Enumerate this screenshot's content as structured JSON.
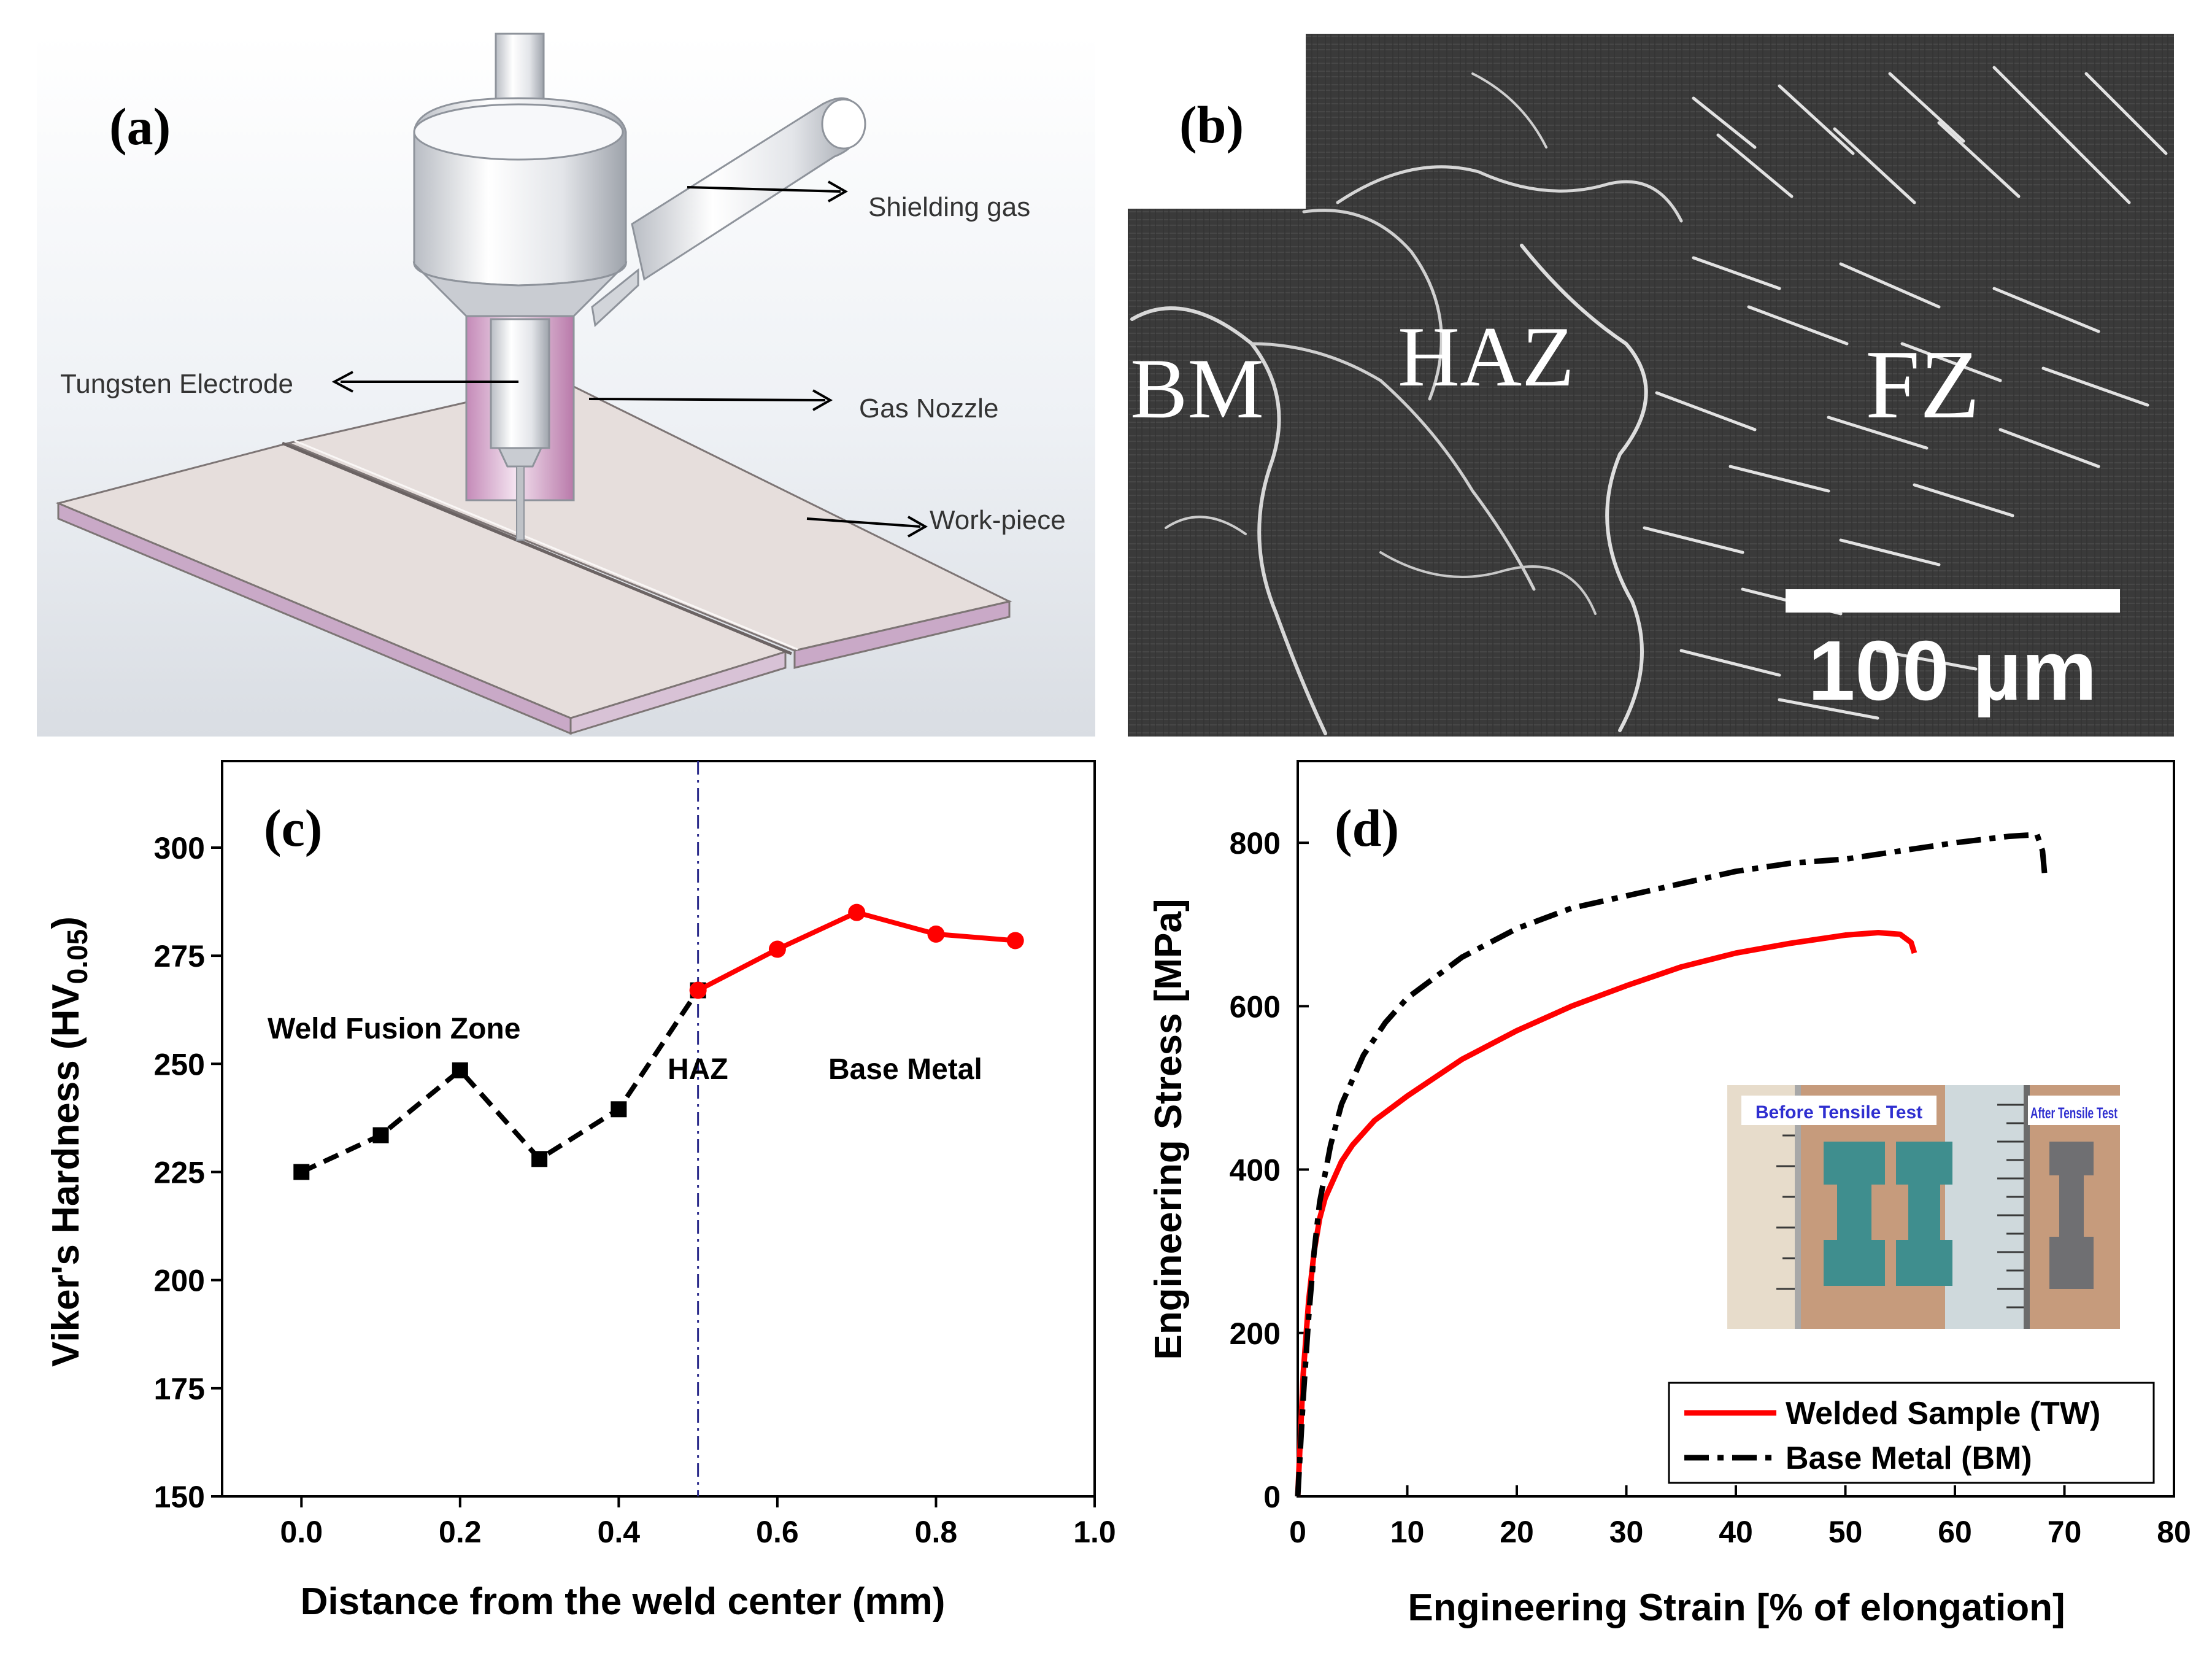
{
  "panel_a": {
    "label": "(a)",
    "annotations": [
      "Shielding gas",
      "Tungsten Electrode",
      "Gas Nozzle",
      "Work-piece"
    ]
  },
  "panel_b": {
    "label": "(b)",
    "regions": [
      "BM",
      "HAZ",
      "FZ"
    ],
    "scale_bar": "100 µm"
  },
  "chart_data": [
    {
      "type": "line",
      "panel_label": "(c)",
      "xlabel": "Distance from the weld center (mm)",
      "ylabel_main": "Viker's Hardness (HV",
      "ylabel_sub": "0.05",
      "ylabel_close": ")",
      "xlim": [
        -0.1,
        1.0
      ],
      "ylim": [
        150,
        320
      ],
      "xticks": [
        "0.0",
        "0.2",
        "0.4",
        "0.6",
        "0.8",
        "1.0"
      ],
      "xtick_values": [
        0.0,
        0.2,
        0.4,
        0.6,
        0.8,
        1.0
      ],
      "yticks": [
        "150",
        "175",
        "200",
        "225",
        "250",
        "275",
        "300"
      ],
      "ytick_values": [
        150,
        175,
        200,
        225,
        250,
        275,
        300
      ],
      "vline_x": 0.5,
      "annotations": [
        "Weld Fusion Zone",
        "HAZ",
        "Base Metal"
      ],
      "series": [
        {
          "color": "#000000",
          "line": "dashed",
          "marker": "square",
          "x": [
            0.0,
            0.1,
            0.2,
            0.3,
            0.4,
            0.5
          ],
          "y": [
            225,
            233.5,
            248.5,
            228,
            239.5,
            267
          ]
        },
        {
          "color": "#ff0000",
          "line": "solid",
          "marker": "circle",
          "x": [
            0.5,
            0.6,
            0.7,
            0.8,
            0.9
          ],
          "y": [
            267,
            276.5,
            285,
            280,
            278.5
          ]
        }
      ]
    },
    {
      "type": "line",
      "panel_label": "(d)",
      "xlabel": "Engineering Strain [% of elongation]",
      "ylabel": "Engineering Stress [MPa]",
      "xlim": [
        0,
        80
      ],
      "ylim": [
        0,
        900
      ],
      "xticks": [
        "0",
        "10",
        "20",
        "30",
        "40",
        "50",
        "60",
        "70",
        "80"
      ],
      "xtick_values": [
        0,
        10,
        20,
        30,
        40,
        50,
        60,
        70,
        80
      ],
      "yticks": [
        "0",
        "200",
        "400",
        "600",
        "800"
      ],
      "ytick_values": [
        0,
        200,
        400,
        600,
        800
      ],
      "legend_position": "bottom-right",
      "inset_labels": [
        "Before Tensile Test",
        "After Tensile Test"
      ],
      "series": [
        {
          "name": "Welded Sample (TW)",
          "color": "#ff0000",
          "line": "solid",
          "x": [
            0,
            0.5,
            1,
            1.5,
            2,
            2.5,
            3,
            4,
            5,
            7,
            10,
            15,
            20,
            25,
            30,
            35,
            40,
            45,
            50,
            53,
            55,
            56,
            56.3
          ],
          "y": [
            0,
            150,
            240,
            300,
            340,
            365,
            380,
            410,
            430,
            460,
            490,
            535,
            570,
            600,
            625,
            648,
            665,
            677,
            687,
            690,
            688,
            678,
            665
          ]
        },
        {
          "name": "Base Metal (BM)",
          "color": "#000000",
          "line": "dashdot",
          "x": [
            0,
            0.5,
            1,
            1.5,
            2,
            3,
            4,
            5,
            6,
            8,
            10,
            15,
            20,
            25,
            30,
            35,
            40,
            45,
            50,
            55,
            60,
            65,
            67.5,
            68,
            68.2
          ],
          "y": [
            0,
            120,
            220,
            300,
            360,
            430,
            480,
            510,
            540,
            580,
            610,
            660,
            695,
            720,
            735,
            750,
            765,
            775,
            780,
            790,
            800,
            808,
            810,
            790,
            760
          ]
        }
      ]
    }
  ]
}
